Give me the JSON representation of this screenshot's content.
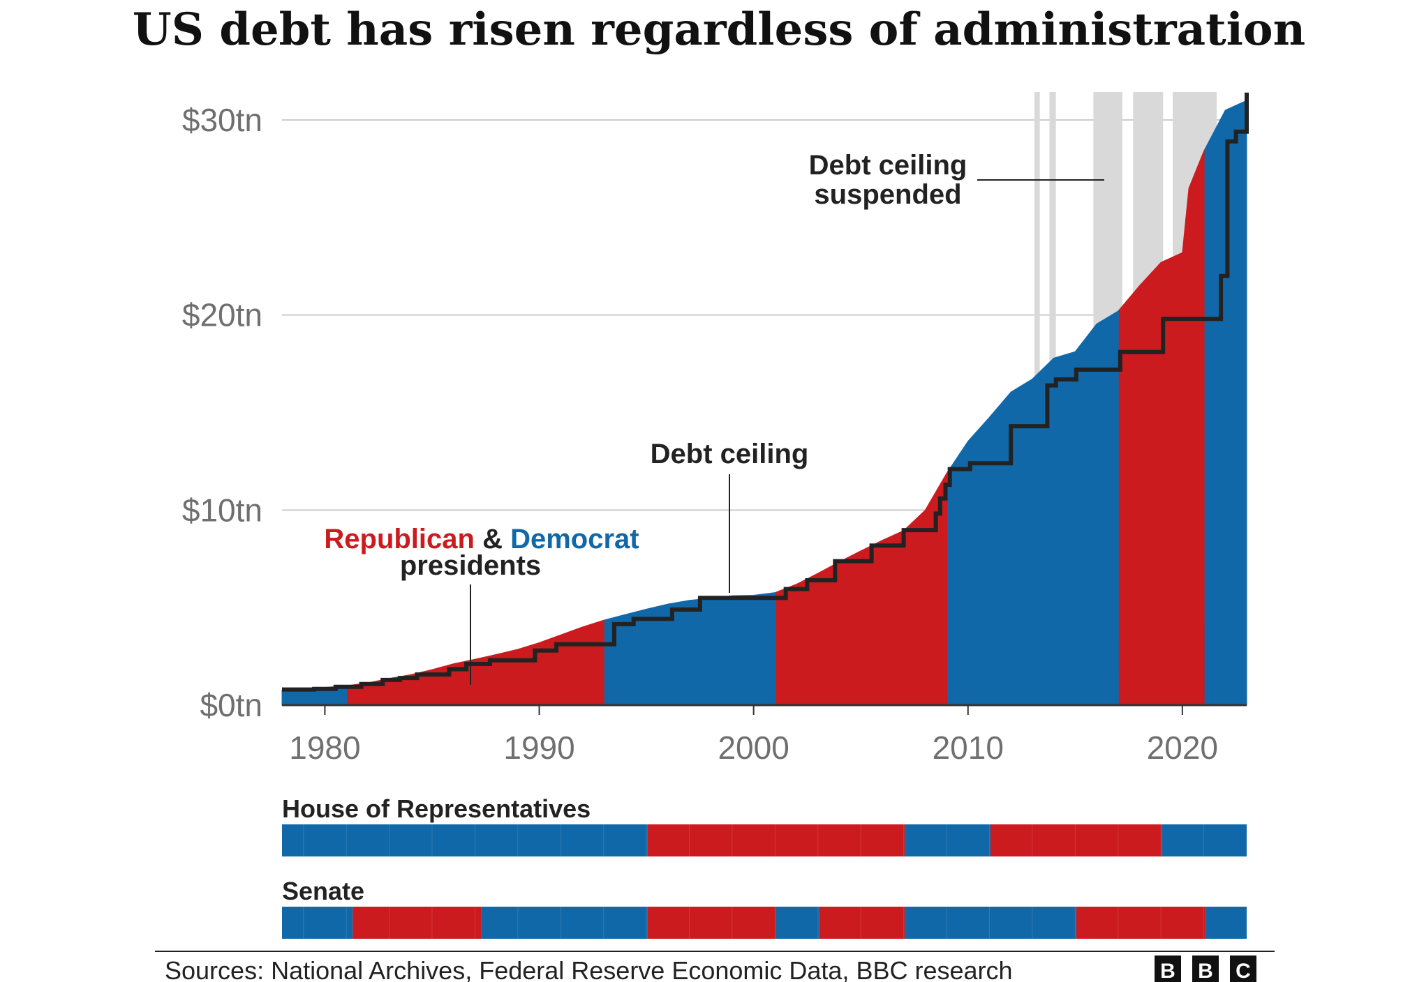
{
  "chart_data": {
    "type": "area",
    "title": "US debt has risen regardless of administration",
    "xlim": [
      1978,
      2023
    ],
    "ylim": [
      0,
      31
    ],
    "x_ticks": [
      1980,
      1990,
      2000,
      2010,
      2020
    ],
    "x_tick_labels": [
      "1980",
      "1990",
      "2000",
      "2010",
      "2020"
    ],
    "y_ticks": [
      0,
      10,
      20,
      30
    ],
    "y_tick_labels": [
      "$0tn",
      "$10tn",
      "$20tn",
      "$30tn"
    ],
    "grid": "horizontal",
    "colors": {
      "republican": "#cc1b1f",
      "democrat": "#1168a8",
      "ceiling": "#222222",
      "suspended": "#d9d9d9",
      "grid": "#cccccc"
    },
    "debt_series": {
      "name": "Federal debt",
      "x": [
        1978,
        1979,
        1980,
        1981,
        1982,
        1983,
        1984,
        1985,
        1986,
        1987,
        1988,
        1989,
        1990,
        1991,
        1992,
        1993,
        1994,
        1995,
        1996,
        1997,
        1998,
        1999,
        2000,
        2001,
        2002,
        2003,
        2004,
        2005,
        2006,
        2007,
        2008,
        2009,
        2010,
        2011,
        2012,
        2013,
        2014,
        2015,
        2016,
        2017,
        2018,
        2019,
        2020,
        2020.3,
        2021,
        2022,
        2023
      ],
      "y": [
        0.77,
        0.83,
        0.91,
        0.99,
        1.14,
        1.37,
        1.56,
        1.82,
        2.12,
        2.35,
        2.6,
        2.86,
        3.2,
        3.6,
        4.0,
        4.35,
        4.64,
        4.92,
        5.18,
        5.37,
        5.48,
        5.61,
        5.63,
        5.77,
        6.2,
        6.76,
        7.35,
        7.91,
        8.45,
        8.95,
        9.99,
        11.88,
        13.53,
        14.76,
        16.05,
        16.72,
        17.79,
        18.12,
        19.54,
        20.2,
        21.5,
        22.7,
        23.2,
        26.5,
        28.4,
        30.5,
        31.0
      ]
    },
    "presidencies": [
      {
        "party": "D",
        "start": 1978,
        "end": 1981.05
      },
      {
        "party": "R",
        "start": 1981.05,
        "end": 1993.05
      },
      {
        "party": "D",
        "start": 1993.05,
        "end": 2001.05
      },
      {
        "party": "R",
        "start": 2001.05,
        "end": 2009.05
      },
      {
        "party": "D",
        "start": 2009.05,
        "end": 2017.05
      },
      {
        "party": "R",
        "start": 2017.05,
        "end": 2021.05
      },
      {
        "party": "D",
        "start": 2021.05,
        "end": 2023
      }
    ],
    "debt_ceiling": {
      "name": "Debt ceiling",
      "x": [
        1978,
        1979.5,
        1980.5,
        1981.7,
        1982.7,
        1983.5,
        1984.3,
        1985.8,
        1986.6,
        1987.7,
        1989.8,
        1990.8,
        1993.5,
        1994.4,
        1996.2,
        1997.5,
        2001.5,
        2002.5,
        2003.8,
        2005.5,
        2007.0,
        2008.5,
        2008.7,
        2008.95,
        2009.15,
        2010.1,
        2012.0,
        2013.7,
        2014.1,
        2015.05,
        2017.1,
        2019.1,
        2021.8,
        2022.1,
        2022.5,
        2023
      ],
      "y": [
        0.8,
        0.83,
        0.94,
        1.08,
        1.29,
        1.39,
        1.57,
        1.84,
        2.11,
        2.3,
        2.8,
        3.12,
        4.15,
        4.42,
        4.9,
        5.5,
        5.95,
        6.4,
        7.38,
        8.18,
        8.97,
        9.82,
        10.6,
        11.3,
        12.1,
        12.4,
        14.3,
        16.39,
        16.7,
        17.2,
        18.1,
        19.8,
        22.0,
        28.9,
        29.4,
        31.4
      ]
    },
    "suspended_periods": [
      [
        2013.1,
        2013.35
      ],
      [
        2013.8,
        2014.1
      ],
      [
        2015.85,
        2017.2
      ],
      [
        2017.7,
        2019.1
      ],
      [
        2019.55,
        2021.6
      ]
    ],
    "annotations": {
      "debt_ceiling_label": "Debt ceiling",
      "suspended_line1": "Debt ceiling",
      "suspended_line2": "suspended",
      "legend_republican": "Republican",
      "legend_amp": " & ",
      "legend_democrat": "Democrat",
      "legend_line2": "presidents"
    },
    "house": {
      "label": "House of Representatives",
      "segments": [
        {
          "party": "D",
          "start": 1978,
          "end": 1995.05
        },
        {
          "party": "R",
          "start": 1995.05,
          "end": 2007.05
        },
        {
          "party": "D",
          "start": 2007.05,
          "end": 2011.05
        },
        {
          "party": "R",
          "start": 2011.05,
          "end": 2019.05
        },
        {
          "party": "D",
          "start": 2019.05,
          "end": 2023
        }
      ]
    },
    "senate": {
      "label": "Senate",
      "segments": [
        {
          "party": "D",
          "start": 1978,
          "end": 1981.3
        },
        {
          "party": "R",
          "start": 1981.3,
          "end": 1987.3
        },
        {
          "party": "D",
          "start": 1987.3,
          "end": 1995.05
        },
        {
          "party": "R",
          "start": 1995.05,
          "end": 2001.05
        },
        {
          "party": "D",
          "start": 2001.05,
          "end": 2003.05
        },
        {
          "party": "R",
          "start": 2003.05,
          "end": 2007.05
        },
        {
          "party": "D",
          "start": 2007.05,
          "end": 2015.05
        },
        {
          "party": "R",
          "start": 2015.05,
          "end": 2021.1
        },
        {
          "party": "D",
          "start": 2021.1,
          "end": 2023
        }
      ]
    }
  },
  "footer": {
    "sources": "Sources: National Archives, Federal Reserve Economic Data, BBC research",
    "logo_letters": [
      "B",
      "B",
      "C"
    ]
  }
}
